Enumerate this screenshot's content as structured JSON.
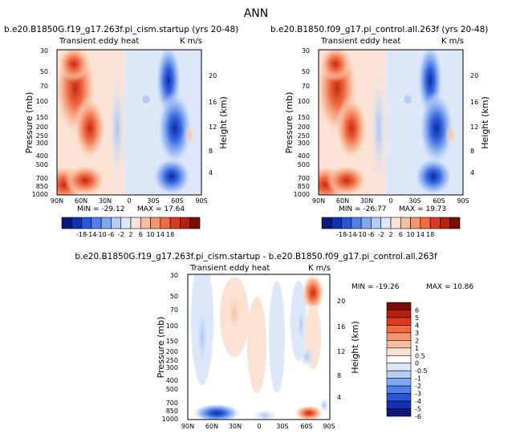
{
  "page_title": "ANN",
  "chart_data": [
    {
      "type": "heatmap",
      "title": "b.e20.B1850G.f19_g17.263f.pi_cism.startup (yrs 20-48)",
      "field_label": "Transient eddy heat",
      "units": "K m/s",
      "xlabel": "",
      "ylabel": "Pressure (mb)",
      "y2label": "Height (km)",
      "x_ticks": [
        "90N",
        "60N",
        "30N",
        "0",
        "30S",
        "60S",
        "90S"
      ],
      "y_ticks": [
        "30",
        "50",
        "70",
        "100",
        "150",
        "200",
        "250",
        "300",
        "400",
        "500",
        "700",
        "850",
        "1000"
      ],
      "y2_ticks": [
        "20",
        "16",
        "12",
        "8",
        "4"
      ],
      "ylim": [
        1000,
        30
      ],
      "min_label": "MIN = -29.12",
      "max_label": "MAX = 17.64",
      "min": -29.12,
      "max": 17.64,
      "colorbar_ticks": [
        "-18",
        "-14",
        "-10",
        "-6",
        "-2",
        "2",
        "6",
        "10",
        "14",
        "18"
      ],
      "features": [
        {
          "kind": "warm",
          "lat": 58,
          "peak": 18
        },
        {
          "kind": "cold",
          "lat": -52,
          "peak": -29.12
        }
      ]
    },
    {
      "type": "heatmap",
      "title": "b.e20.B1850.f09_g17.pi_control.all.263f (yrs 20-48)",
      "field_label": "Transient eddy heat",
      "units": "K m/s",
      "xlabel": "",
      "ylabel": "Pressure (mb)",
      "y2label": "Height (km)",
      "x_ticks": [
        "90N",
        "60N",
        "30N",
        "0",
        "30S",
        "60S",
        "90S"
      ],
      "y_ticks": [
        "30",
        "50",
        "70",
        "100",
        "150",
        "200",
        "250",
        "300",
        "400",
        "500",
        "700",
        "850",
        "1000"
      ],
      "y2_ticks": [
        "20",
        "16",
        "12",
        "8",
        "4"
      ],
      "ylim": [
        1000,
        30
      ],
      "min_label": "MIN = -26.77",
      "max_label": "MAX = 19.73",
      "min": -26.77,
      "max": 19.73,
      "colorbar_ticks": [
        "-18",
        "-14",
        "-10",
        "-6",
        "-2",
        "2",
        "6",
        "10",
        "14",
        "18"
      ],
      "features": [
        {
          "kind": "warm",
          "lat": 58,
          "peak": 19.73
        },
        {
          "kind": "cold",
          "lat": -52,
          "peak": -26.77
        }
      ]
    },
    {
      "type": "heatmap",
      "title": "b.e20.B1850G.f19_g17.263f.pi_cism.startup - b.e20.B1850.f09_g17.pi_control.all.263f",
      "field_label": "Transient eddy heat",
      "units": "K m/s",
      "xlabel": "",
      "ylabel": "Pressure (mb)",
      "y2label": "Height (km)",
      "x_ticks": [
        "90N",
        "60N",
        "30N",
        "0",
        "30S",
        "60S",
        "90S"
      ],
      "y_ticks": [
        "30",
        "50",
        "70",
        "100",
        "150",
        "200",
        "250",
        "300",
        "400",
        "500",
        "700",
        "850",
        "1000"
      ],
      "y2_ticks": [
        "20",
        "16",
        "12",
        "8",
        "4"
      ],
      "ylim": [
        1000,
        30
      ],
      "min_label": "MIN = -19.26",
      "max_label": "MAX =  10.86",
      "min": -19.26,
      "max": 10.86,
      "colorbar_ticks": [
        "6",
        "5",
        "4",
        "3",
        "2",
        "1",
        "0.5",
        "0",
        "-0.5",
        "-1",
        "-2",
        "-3",
        "-4",
        "-5",
        "-6"
      ],
      "features": [
        {
          "kind": "warm",
          "lat": -68,
          "peak": 10.86
        },
        {
          "kind": "cold",
          "lat": 70,
          "peak": -19.26
        }
      ]
    }
  ],
  "colors": {
    "main_palette": [
      "#0b1a7a",
      "#1030b8",
      "#2a55d8",
      "#4f80ec",
      "#80a8f2",
      "#b4ccf6",
      "#dce8fa",
      "#fbe2d2",
      "#f8bea0",
      "#f6946e",
      "#f26a40",
      "#dc3a20",
      "#b8200c",
      "#7a0c04"
    ],
    "diff_palette": [
      "#0b1a7a",
      "#1030b8",
      "#2a55d8",
      "#4f80ec",
      "#80a8f2",
      "#b4ccf6",
      "#dce8fa",
      "#ffffff",
      "#fbe2d2",
      "#f8bea0",
      "#f6946e",
      "#f26a40",
      "#dc3a20",
      "#b8200c",
      "#7a0c04"
    ]
  }
}
